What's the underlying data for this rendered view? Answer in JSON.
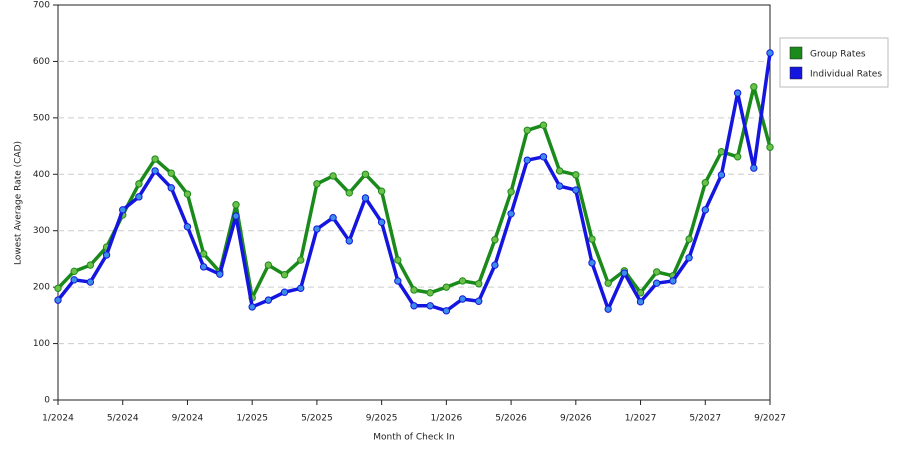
{
  "chart_data": {
    "type": "line",
    "x_label": "Month of Check In",
    "y_label": "Lowest Average Rate (CAD)",
    "categories": [
      "1/2024",
      null,
      null,
      null,
      "5/2024",
      null,
      null,
      null,
      "9/2024",
      null,
      null,
      null,
      "1/2025",
      null,
      null,
      null,
      "5/2025",
      null,
      null,
      null,
      "9/2025",
      null,
      null,
      null,
      "1/2026",
      null,
      null,
      null,
      "5/2026",
      null,
      null,
      null,
      "9/2026",
      null,
      null,
      null,
      "1/2027",
      null,
      null,
      null,
      "5/2027",
      null,
      null,
      null,
      "9/2027"
    ],
    "series": [
      {
        "name": "Group Rates",
        "color": "#1a8a1a",
        "marker_color": "#6cc04a",
        "values": [
          198,
          228,
          239,
          271,
          328,
          383,
          427,
          402,
          365,
          259,
          227,
          346,
          181,
          239,
          222,
          248,
          383,
          397,
          367,
          400,
          370,
          248,
          195,
          190,
          200,
          211,
          206,
          284,
          369,
          478,
          487,
          406,
          399,
          285,
          207,
          229,
          190,
          227,
          220,
          285,
          385,
          440,
          431,
          555,
          448
        ]
      },
      {
        "name": "Individual Rates",
        "color": "#1515e0",
        "marker_color": "#3a8ee8",
        "values": [
          177,
          213,
          209,
          257,
          337,
          360,
          406,
          376,
          307,
          236,
          223,
          326,
          165,
          177,
          191,
          198,
          303,
          323,
          282,
          358,
          315,
          211,
          167,
          167,
          158,
          179,
          175,
          239,
          330,
          425,
          431,
          379,
          372,
          243,
          161,
          225,
          174,
          207,
          211,
          252,
          337,
          399,
          544,
          411,
          615
        ]
      }
    ],
    "ylim": [
      0,
      700
    ],
    "yticks": [
      0,
      100,
      200,
      300,
      400,
      500,
      600,
      700
    ],
    "grid": true,
    "legend": "right"
  }
}
